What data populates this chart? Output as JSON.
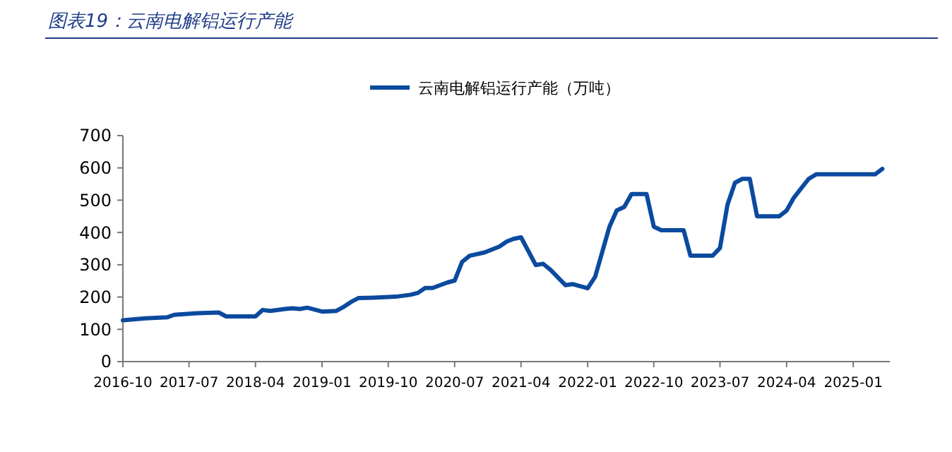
{
  "chart_data": {
    "type": "line",
    "title": "图表19：云南电解铝运行产能",
    "legend": "top",
    "grid": false,
    "xlim": [
      "2016-10",
      "2025-06"
    ],
    "xticks": [
      "2016-10",
      "2017-07",
      "2018-04",
      "2019-01",
      "2019-10",
      "2020-07",
      "2021-04",
      "2022-01",
      "2022-10",
      "2023-07",
      "2024-04",
      "2025-01"
    ],
    "ylim": [
      0,
      700
    ],
    "yticks": [
      0,
      100,
      200,
      300,
      400,
      500,
      600,
      700
    ],
    "series": [
      {
        "name": "云南电解铝运行产能（万吨）",
        "color": "#0b4a9e",
        "x": [
          "2016-10",
          "2017-01",
          "2017-04",
          "2017-05",
          "2017-08",
          "2017-11",
          "2017-12",
          "2018-04",
          "2018-05",
          "2018-06",
          "2018-08",
          "2018-09",
          "2018-10",
          "2018-11",
          "2019-01",
          "2019-03",
          "2019-04",
          "2019-05",
          "2019-06",
          "2019-08",
          "2019-11",
          "2020-01",
          "2020-02",
          "2020-03",
          "2020-04",
          "2020-06",
          "2020-07",
          "2020-08",
          "2020-09",
          "2020-11",
          "2021-01",
          "2021-02",
          "2021-03",
          "2021-04",
          "2021-06",
          "2021-07",
          "2021-08",
          "2021-10",
          "2021-11",
          "2022-01",
          "2022-02",
          "2022-04",
          "2022-05",
          "2022-06",
          "2022-07",
          "2022-09",
          "2022-10",
          "2022-11",
          "2023-02",
          "2023-03",
          "2023-06",
          "2023-07",
          "2023-08",
          "2023-09",
          "2023-10",
          "2023-11",
          "2023-12",
          "2024-03",
          "2024-04",
          "2024-05",
          "2024-07",
          "2024-08",
          "2025-04",
          "2025-05"
        ],
        "values": [
          128,
          134,
          137,
          145,
          150,
          152,
          140,
          140,
          160,
          157,
          163,
          165,
          163,
          167,
          155,
          157,
          170,
          185,
          197,
          198,
          201,
          207,
          213,
          228,
          228,
          245,
          251,
          309,
          328,
          338,
          356,
          372,
          380,
          385,
          299,
          303,
          284,
          237,
          240,
          227,
          263,
          418,
          468,
          479,
          519,
          519,
          418,
          407,
          407,
          328,
          328,
          352,
          486,
          554,
          566,
          566,
          450,
          450,
          468,
          508,
          566,
          580,
          580,
          597
        ]
      }
    ]
  }
}
